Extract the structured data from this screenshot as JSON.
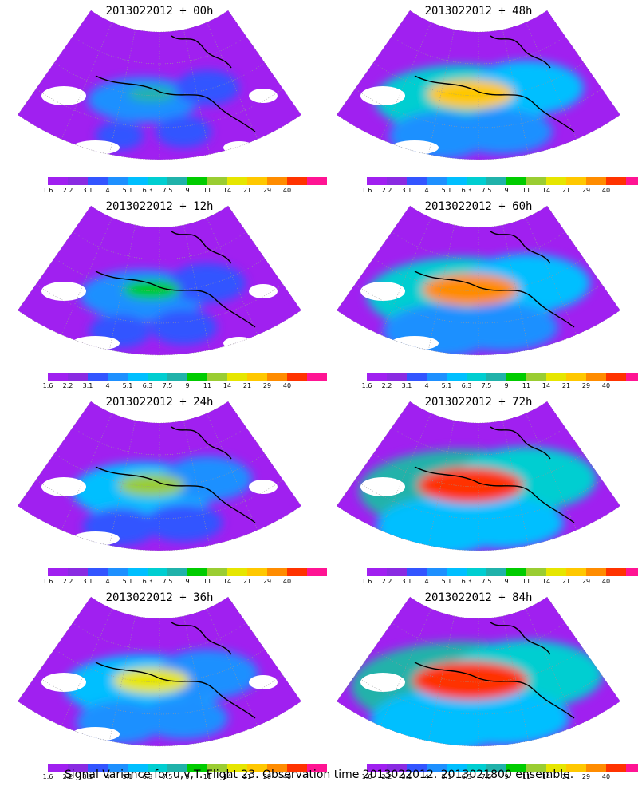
{
  "caption": "Signal Variance for u,v,T. Flight 23. Observation time 2013022012. 2013021800 ensemble.",
  "colorbar": {
    "labels": [
      "1.6",
      "2.2",
      "3.1",
      "4",
      "5.1",
      "6.3",
      "7.5",
      "9",
      "11",
      "14",
      "21",
      "29",
      "40"
    ],
    "colors": [
      "#a020f0",
      "#8a2be2",
      "#3355ff",
      "#1e90ff",
      "#00bfff",
      "#00ced1",
      "#20b2aa",
      "#00cc00",
      "#9acd32",
      "#e6e600",
      "#ffc800",
      "#ff8c00",
      "#ff3300",
      "#ff1493"
    ]
  },
  "panels": [
    {
      "title": "2013022012 + 00h",
      "level": 0
    },
    {
      "title": "2013022012 + 48h",
      "level": 4
    },
    {
      "title": "2013022012 + 12h",
      "level": 1
    },
    {
      "title": "2013022012 + 60h",
      "level": 5
    },
    {
      "title": "2013022012 + 24h",
      "level": 2
    },
    {
      "title": "2013022012 + 72h",
      "level": 6
    },
    {
      "title": "2013022012 + 36h",
      "level": 3
    },
    {
      "title": "2013022012 + 84h",
      "level": 7
    }
  ]
}
